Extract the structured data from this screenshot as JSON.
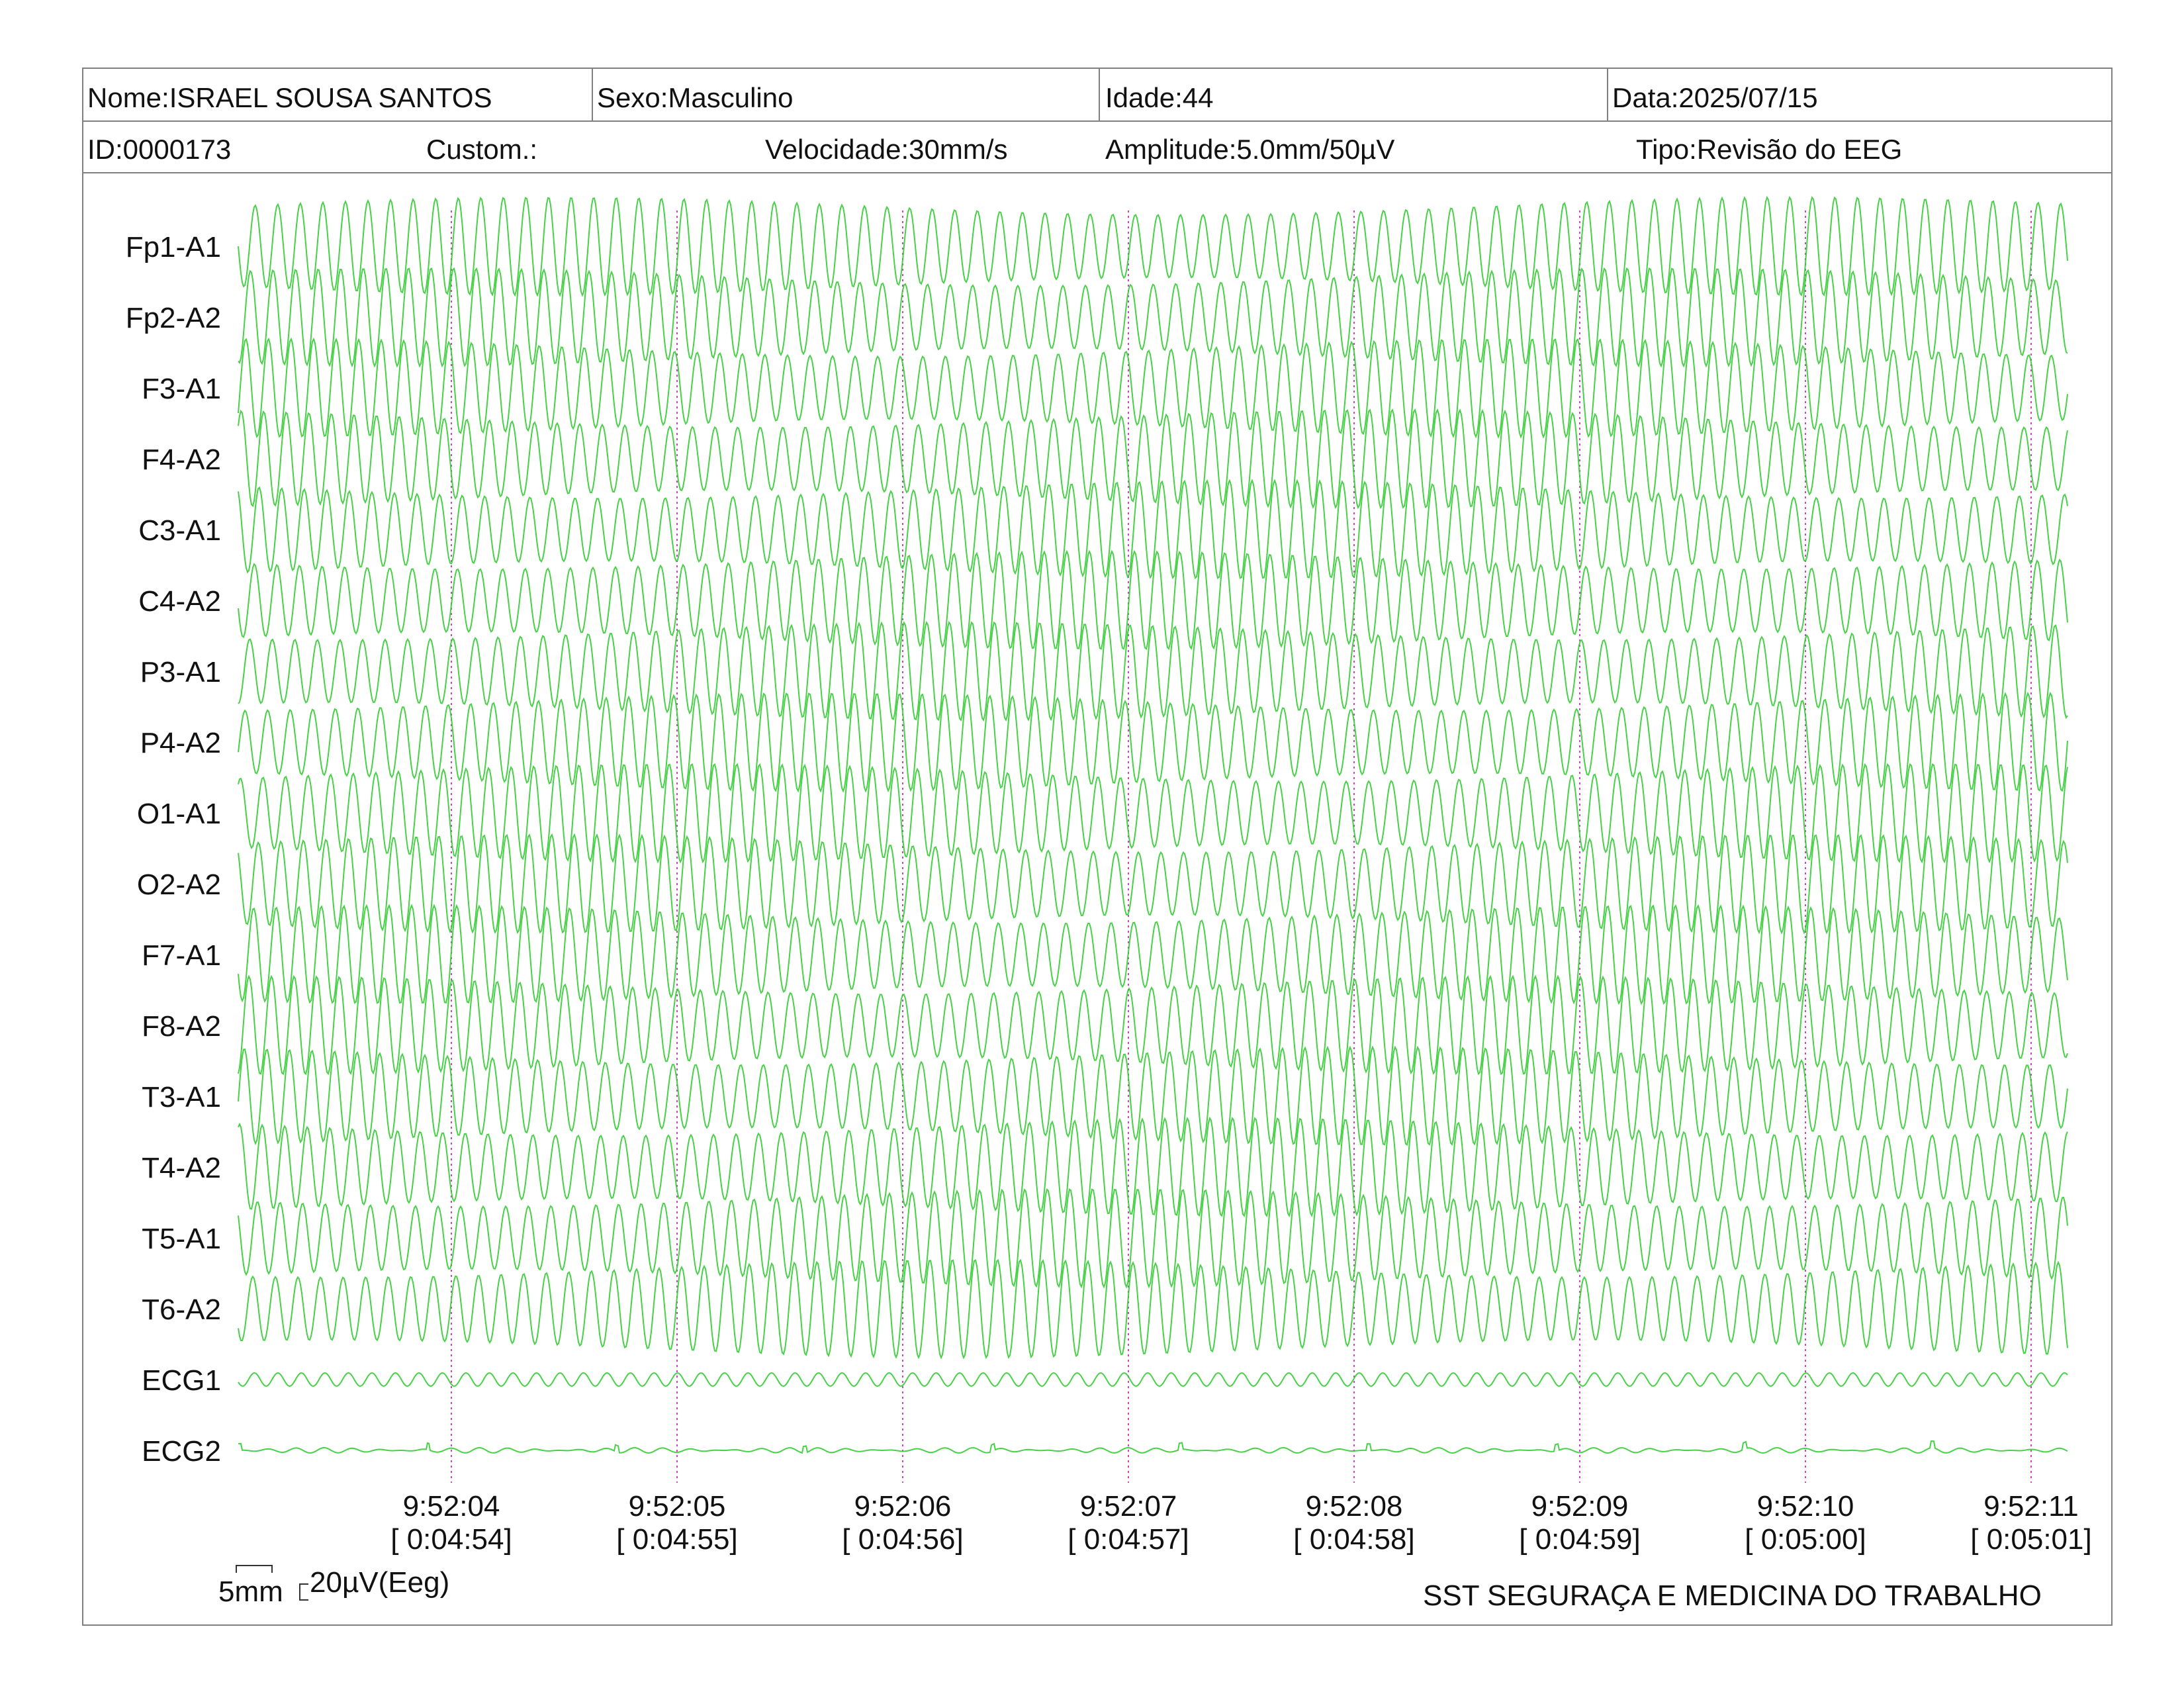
{
  "header": {
    "row1": {
      "nome": "Nome:ISRAEL SOUSA SANTOS",
      "sexo": "Sexo:Masculino",
      "idade": "Idade:44",
      "data": "Data:2025/07/15"
    },
    "row2": {
      "id": "ID:0000173",
      "custom": "Custom.:",
      "velocidade": "Velocidade:30mm/s",
      "amplitude": "Amplitude:5.0mm/50µV",
      "tipo": "Tipo:Revisão do EEG"
    }
  },
  "chart_data": {
    "type": "line",
    "title": "",
    "xlabel": "",
    "ylabel": "",
    "grid": false,
    "channels": [
      "Fp1-A1",
      "Fp2-A2",
      "F3-A1",
      "F4-A2",
      "C3-A1",
      "C4-A2",
      "P3-A1",
      "P4-A2",
      "O1-A1",
      "O2-A2",
      "F7-A1",
      "F8-A2",
      "T3-A1",
      "T4-A2",
      "T5-A1",
      "T6-A2",
      "ECG1",
      "ECG2"
    ],
    "time_ticks": [
      "9:52:04",
      "9:52:05",
      "9:52:06",
      "9:52:07",
      "9:52:08",
      "9:52:09",
      "9:52:10",
      "9:52:11"
    ],
    "elapsed_ticks": [
      "[ 0:04:54]",
      "[ 0:04:55]",
      "[ 0:04:56]",
      "[ 0:04:57]",
      "[ 0:04:58]",
      "[ 0:04:59]",
      "[ 0:05:00]",
      "[ 0:05:01]"
    ],
    "dominant_frequency_hz": 10,
    "trace_color": "#33cc33",
    "marker_color": "#cc44cc"
  },
  "scale": {
    "time_label": "5mm",
    "amplitude_label": "20µV(Eeg)"
  },
  "footer": {
    "institution": "SST SEGURAÇA E MEDICINA DO TRABALHO"
  }
}
